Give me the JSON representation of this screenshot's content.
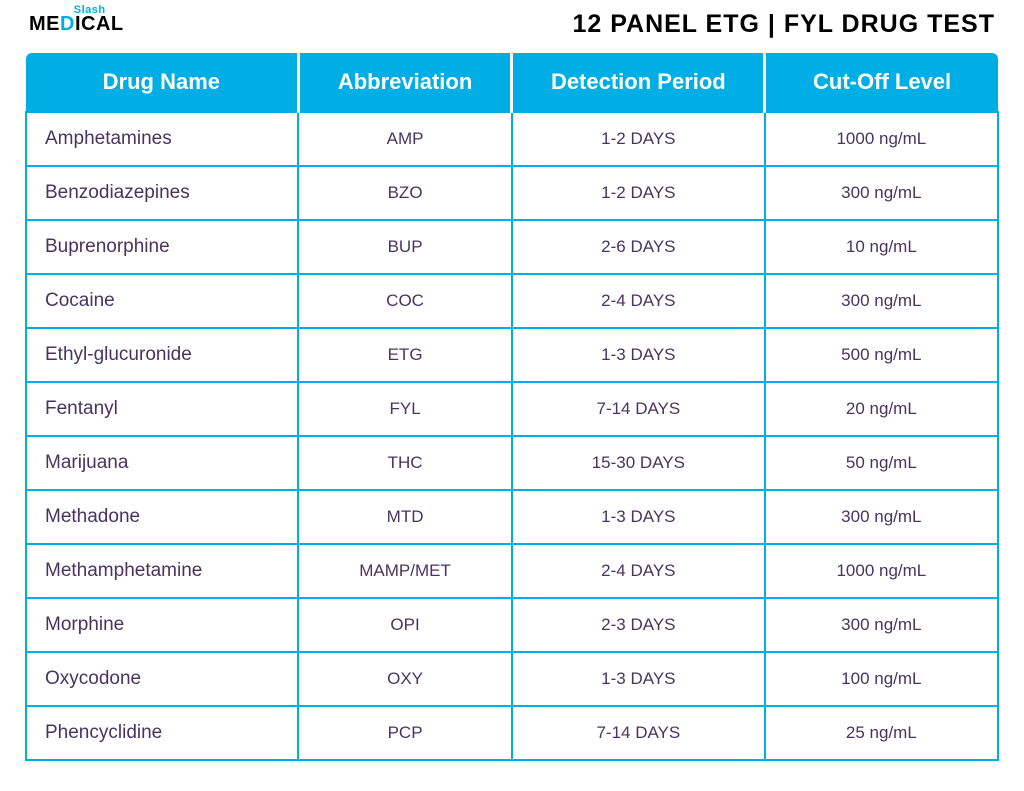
{
  "brand": {
    "line1": "Slash",
    "line2_pre": "ME",
    "line2_accent": "D",
    "line2_mid": "I",
    "line2_post": "CAL"
  },
  "title": "12 PANEL ETG | FYL DRUG TEST",
  "table": {
    "type": "table",
    "header_bg": "#00aee6",
    "header_fg": "#ffffff",
    "border_color": "#00aee6",
    "text_color": "#4b335f",
    "header_fontsize": 22,
    "cell_fontsize": 17,
    "name_fontsize": 19,
    "columns": [
      {
        "key": "name",
        "label": "Drug Name",
        "width_pct": 28,
        "align": "left"
      },
      {
        "key": "abbrev",
        "label": "Abbreviation",
        "width_pct": 22,
        "align": "center"
      },
      {
        "key": "detect",
        "label": "Detection Period",
        "width_pct": 26,
        "align": "center"
      },
      {
        "key": "cutoff",
        "label": "Cut-Off Level",
        "width_pct": 24,
        "align": "center"
      }
    ],
    "rows": [
      {
        "name": "Amphetamines",
        "abbrev": "AMP",
        "detect": "1-2 DAYS",
        "cutoff": "1000 ng/mL"
      },
      {
        "name": "Benzodiazepines",
        "abbrev": "BZO",
        "detect": "1-2 DAYS",
        "cutoff": "300 ng/mL"
      },
      {
        "name": "Buprenorphine",
        "abbrev": "BUP",
        "detect": "2-6 DAYS",
        "cutoff": "10 ng/mL"
      },
      {
        "name": "Cocaine",
        "abbrev": "COC",
        "detect": "2-4 DAYS",
        "cutoff": "300 ng/mL"
      },
      {
        "name": "Ethyl-glucuronide",
        "abbrev": "ETG",
        "detect": "1-3 DAYS",
        "cutoff": "500 ng/mL"
      },
      {
        "name": "Fentanyl",
        "abbrev": "FYL",
        "detect": "7-14 DAYS",
        "cutoff": "20 ng/mL"
      },
      {
        "name": "Marijuana",
        "abbrev": "THC",
        "detect": "15-30 DAYS",
        "cutoff": "50 ng/mL"
      },
      {
        "name": "Methadone",
        "abbrev": "MTD",
        "detect": "1-3 DAYS",
        "cutoff": "300 ng/mL"
      },
      {
        "name": "Methamphetamine",
        "abbrev": "MAMP/MET",
        "detect": "2-4 DAYS",
        "cutoff": "1000 ng/mL"
      },
      {
        "name": "Morphine",
        "abbrev": "OPI",
        "detect": "2-3 DAYS",
        "cutoff": "300 ng/mL"
      },
      {
        "name": "Oxycodone",
        "abbrev": "OXY",
        "detect": "1-3 DAYS",
        "cutoff": "100 ng/mL"
      },
      {
        "name": "Phencyclidine",
        "abbrev": "PCP",
        "detect": "7-14 DAYS",
        "cutoff": "25 ng/mL"
      }
    ]
  }
}
